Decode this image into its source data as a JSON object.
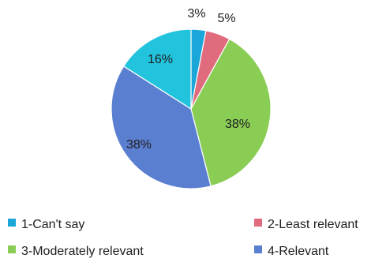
{
  "chart_data": {
    "type": "pie",
    "categories": [
      "1-Can't say",
      "2-Least relevant",
      "3-Moderately relevant",
      "4-Relevant"
    ],
    "values": [
      3,
      5,
      38,
      38
    ],
    "data_labels": [
      "3%",
      "5%",
      "38%",
      "38%"
    ],
    "colors": [
      "#1aa6d8",
      "#e06b7c",
      "#8acd55",
      "#5b7fd0"
    ],
    "label_colors": [
      "#111111",
      "#111111",
      "#2b3a1c",
      "#1b2a52"
    ],
    "slice_order": [
      0,
      1,
      2,
      3
    ],
    "slice_label_order": [
      0,
      1,
      2,
      3
    ],
    "legend": {
      "placement": "bottom",
      "columns": 2
    },
    "title": "",
    "xlabel": "",
    "ylabel": ""
  },
  "extra_slice": {
    "value": 16,
    "label": "16%",
    "color": "#22c3dc",
    "label_color": "#1a2f33"
  }
}
